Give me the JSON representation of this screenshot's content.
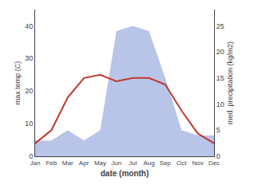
{
  "chart_data": {
    "type": "line",
    "categories": [
      "Jan",
      "Feb",
      "Mar",
      "Apr",
      "May",
      "Jun",
      "Jul",
      "Aug",
      "Sep",
      "Oct",
      "Nov",
      "Dec"
    ],
    "x_label": "date (month)",
    "y_label": "max temp (C)",
    "y2_label": "med. precipitation (kg/m2)",
    "series": [
      {
        "type": "area",
        "axis": "y2",
        "color": "#b8c4e8",
        "values": [
          3,
          3,
          5,
          3,
          5,
          24,
          25,
          24,
          15,
          5,
          4,
          4
        ]
      },
      {
        "type": "line",
        "color": "#c0392b",
        "values": [
          4,
          8,
          18,
          24,
          25,
          23,
          24,
          24,
          22,
          14,
          7,
          4
        ]
      }
    ],
    "ylim": [
      0,
      45
    ],
    "yticks": [
      0,
      10,
      20,
      30,
      40
    ],
    "y2lim": [
      0,
      28.125
    ],
    "y2ticks": [
      0,
      5,
      10,
      15,
      20,
      25
    ],
    "grid": false
  }
}
